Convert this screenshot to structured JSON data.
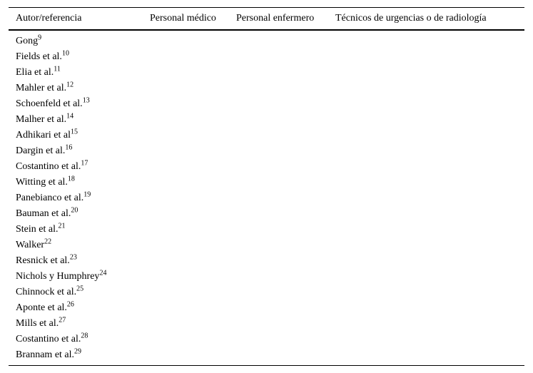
{
  "table": {
    "columns": [
      "Autor/referencia",
      "Personal médico",
      "Personal enfermero",
      "Técnicos de urgencias o de radiología"
    ],
    "rows": [
      {
        "author": "Gong",
        "ref": "9"
      },
      {
        "author": "Fields et al.",
        "ref": "10"
      },
      {
        "author": "Elia et al.",
        "ref": "11"
      },
      {
        "author": "Mahler et al.",
        "ref": "12"
      },
      {
        "author": "Schoenfeld et al.",
        "ref": "13"
      },
      {
        "author": "Malher et al.",
        "ref": "14"
      },
      {
        "author": "Adhikari et al",
        "ref": "15"
      },
      {
        "author": "Dargin et al.",
        "ref": "16"
      },
      {
        "author": "Costantino et al.",
        "ref": "17"
      },
      {
        "author": "Witting et al.",
        "ref": "18"
      },
      {
        "author": "Panebianco et al.",
        "ref": "19"
      },
      {
        "author": "Bauman et al.",
        "ref": "20"
      },
      {
        "author": "Stein et al.",
        "ref": "21"
      },
      {
        "author": "Walker",
        "ref": "22"
      },
      {
        "author": "Resnick et al.",
        "ref": "23"
      },
      {
        "author": "Nichols y Humphrey",
        "ref": "24"
      },
      {
        "author": "Chinnock et al.",
        "ref": "25"
      },
      {
        "author": "Aponte et al.",
        "ref": "26"
      },
      {
        "author": "Mills et al.",
        "ref": "27"
      },
      {
        "author": "Costantino et al.",
        "ref": "28"
      },
      {
        "author": "Brannam et al.",
        "ref": "29"
      }
    ],
    "colors": {
      "text": "#000000",
      "background": "#ffffff",
      "rule": "#000000"
    }
  }
}
